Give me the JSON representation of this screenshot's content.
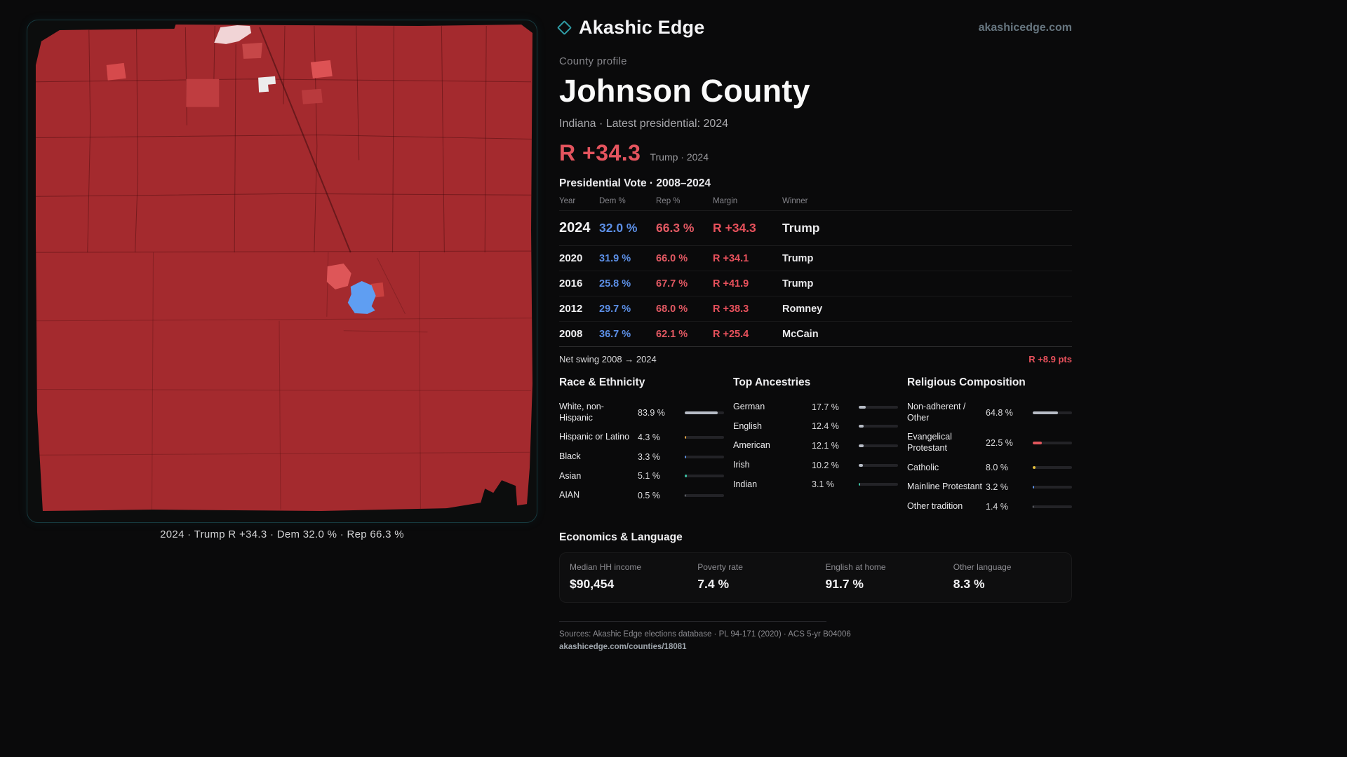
{
  "header": {
    "brand": "Akashic Edge",
    "site": "akashicedge.com"
  },
  "profile": {
    "kicker": "County profile",
    "title": "Johnson County",
    "subtitle": "Indiana · Latest presidential: 2024",
    "margin_value": "R +34.3",
    "margin_note": "Trump · 2024"
  },
  "map": {
    "caption": "2024 · Trump R +34.3 · Dem 32.0 % · Rep 66.3 %"
  },
  "vote": {
    "title": "Presidential Vote · 2008–2024",
    "columns": {
      "year": "Year",
      "dem": "Dem %",
      "rep": "Rep %",
      "margin": "Margin",
      "winner": "Winner"
    },
    "rows": [
      {
        "year": "2024",
        "dem": "32.0 %",
        "rep": "66.3 %",
        "margin": "R +34.3",
        "winner": "Trump"
      },
      {
        "year": "2020",
        "dem": "31.9 %",
        "rep": "66.0 %",
        "margin": "R +34.1",
        "winner": "Trump"
      },
      {
        "year": "2016",
        "dem": "25.8 %",
        "rep": "67.7 %",
        "margin": "R +41.9",
        "winner": "Trump"
      },
      {
        "year": "2012",
        "dem": "29.7 %",
        "rep": "68.0 %",
        "margin": "R +38.3",
        "winner": "Romney"
      },
      {
        "year": "2008",
        "dem": "36.7 %",
        "rep": "62.1 %",
        "margin": "R +25.4",
        "winner": "McCain"
      }
    ],
    "swing_label": "Net swing 2008 → 2024",
    "swing_value": "R +8.9 pts"
  },
  "race": {
    "title": "Race & Ethnicity",
    "items": [
      {
        "label": "White, non-Hispanic",
        "value": "83.9 %",
        "pct": 83.9,
        "color": "#b7bcc6"
      },
      {
        "label": "Hispanic or Latino",
        "value": "4.3 %",
        "pct": 4.3,
        "color": "#e8a23a"
      },
      {
        "label": "Black",
        "value": "3.3 %",
        "pct": 3.3,
        "color": "#5c8fe6"
      },
      {
        "label": "Asian",
        "value": "5.1 %",
        "pct": 5.1,
        "color": "#3cc2a4"
      },
      {
        "label": "AIAN",
        "value": "0.5 %",
        "pct": 0.5,
        "color": "#b7bcc6"
      }
    ]
  },
  "ancestry": {
    "title": "Top Ancestries",
    "items": [
      {
        "label": "German",
        "value": "17.7 %",
        "pct": 17.7,
        "color": "#b7bcc6"
      },
      {
        "label": "English",
        "value": "12.4 %",
        "pct": 12.4,
        "color": "#b7bcc6"
      },
      {
        "label": "American",
        "value": "12.1 %",
        "pct": 12.1,
        "color": "#b7bcc6"
      },
      {
        "label": "Irish",
        "value": "10.2 %",
        "pct": 10.2,
        "color": "#b7bcc6"
      },
      {
        "label": "Indian",
        "value": "3.1 %",
        "pct": 3.1,
        "color": "#3cc2a4"
      }
    ]
  },
  "religion": {
    "title": "Religious Composition",
    "items": [
      {
        "label": "Non-adherent / Other",
        "value": "64.8 %",
        "pct": 64.8,
        "color": "#b7bcc6"
      },
      {
        "label": "Evangelical Protestant",
        "value": "22.5 %",
        "pct": 22.5,
        "color": "#e0565c"
      },
      {
        "label": "Catholic",
        "value": "8.0 %",
        "pct": 8.0,
        "color": "#e6c03a"
      },
      {
        "label": "Mainline Protestant",
        "value": "3.2 %",
        "pct": 3.2,
        "color": "#5c8fe6"
      },
      {
        "label": "Other tradition",
        "value": "1.4 %",
        "pct": 1.4,
        "color": "#b7bcc6"
      }
    ]
  },
  "economics": {
    "title": "Economics & Language",
    "stats": [
      {
        "label": "Median HH income",
        "value": "$90,454"
      },
      {
        "label": "Poverty rate",
        "value": "7.4 %"
      },
      {
        "label": "English at home",
        "value": "91.7 %"
      },
      {
        "label": "Other language",
        "value": "8.3 %"
      }
    ]
  },
  "footer": {
    "sources": "Sources: Akashic Edge elections database · PL 94-171 (2020) · ACS 5-yr B04006",
    "permalink": "akashicedge.com/counties/18081"
  },
  "colors": {
    "dem_blue": "#5c8fe6",
    "rep_red": "#e4545e",
    "map_base_red": "#a42a2e",
    "map_dem_blue": "#5f9ef2",
    "accent_teal": "#2f9aa3"
  }
}
